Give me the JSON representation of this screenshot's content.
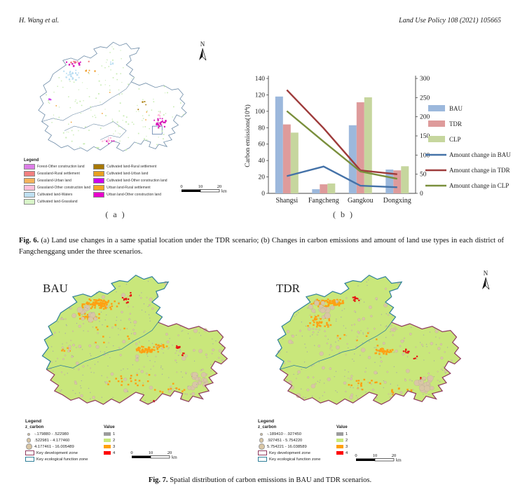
{
  "header": {
    "author": "H. Wang et al.",
    "journal": "Land Use Policy 108 (2021) 105665"
  },
  "fig6": {
    "north_label": "N",
    "label_a": "( a )",
    "label_b": "( b )",
    "caption_bold": "Fig. 6.",
    "caption_text": "(a) Land use changes in a same spatial location under the TDR scenario; (b) Changes in carbon emissions and amount of land use types in each district of Fangchenggang under the three scenarios.",
    "map_legend": {
      "title": "Legend",
      "items": [
        {
          "label": "Forest-Other construction land",
          "color": "#DD7EE8"
        },
        {
          "label": "Grassland-Rural settlement",
          "color": "#F28080"
        },
        {
          "label": "Grassland-Urban land",
          "color": "#F5B35C"
        },
        {
          "label": "Grassland-Other construction land",
          "color": "#FFC0DC"
        },
        {
          "label": "Cultivated land-Waters",
          "color": "#BFE0F2"
        },
        {
          "label": "Cultivated land-Grassland",
          "color": "#D9F5C9"
        },
        {
          "label": "Cultivated land-Rural settlement",
          "color": "#A87800"
        },
        {
          "label": "Cultivated land-Urban land",
          "color": "#E8A020"
        },
        {
          "label": "Cultivated land-Other construction land",
          "color": "#CC00EE"
        },
        {
          "label": "Urban land-Rural settlement",
          "color": "#F5A623"
        },
        {
          "label": "Urban land-Other construction land",
          "color": "#E800CC"
        }
      ]
    },
    "scalebar": {
      "ticks": [
        "0",
        "10",
        "20"
      ],
      "unit": "km"
    }
  },
  "chart_data": {
    "type": "bar+line",
    "categories": [
      "Shangsi",
      "Fangcheng",
      "Gangkou",
      "Dongxing"
    ],
    "bar_series": [
      {
        "name": "BAU",
        "values": [
          118,
          5,
          83,
          29
        ],
        "color": "#9CB8DC"
      },
      {
        "name": "TDR",
        "values": [
          84,
          11,
          111,
          28
        ],
        "color": "#DE9B9B"
      },
      {
        "name": "CLP",
        "values": [
          74,
          12,
          117,
          33
        ],
        "color": "#C6D69E"
      }
    ],
    "line_series": [
      {
        "name": "Amount change in BAU",
        "values": [
          45,
          70,
          20,
          16
        ],
        "color": "#4472A8"
      },
      {
        "name": "Amount change  in TDR",
        "values": [
          270,
          170,
          60,
          50
        ],
        "color": "#9E3B3B"
      },
      {
        "name": "Amount change in CLP",
        "values": [
          215,
          135,
          57,
          38
        ],
        "color": "#7A8F3C"
      }
    ],
    "ylabel": "Carbon emissions(10⁴t)",
    "xlabel": "",
    "y_left": {
      "min": 0,
      "max": 140,
      "step": 20
    },
    "y_right": {
      "min": 0,
      "max": 300,
      "step": 50
    },
    "grid": false,
    "legend_position": "right"
  },
  "fig7": {
    "north_label": "N",
    "caption_bold": "Fig. 7.",
    "caption_text": "Spatial distribution of carbon emissions in BAU and TDR scenarios.",
    "legend_title": "Legend",
    "field_label": "z_carbon",
    "value_header": "Value",
    "value_classes": [
      {
        "label": "1",
        "color": "#9C9C9C"
      },
      {
        "label": "2",
        "color": "#C8E87C"
      },
      {
        "label": "3",
        "color": "#FFA00A"
      },
      {
        "label": "4",
        "color": "#FE0000"
      }
    ],
    "zones": [
      {
        "label": "Key development zone",
        "color": "#8E3A5E"
      },
      {
        "label": "Key ecological function zone",
        "color": "#2F7F99"
      }
    ],
    "maps": [
      {
        "title": "BAU",
        "classes": [
          "-.179880 - .522980",
          ".522981 - 4.177460",
          "4.177461 - 16.005489"
        ]
      },
      {
        "title": "TDR",
        "classes": [
          "-.189410 - .927450",
          ".927451 - 5.754220",
          "5.754221 - 16.038589"
        ]
      }
    ],
    "scalebar": {
      "ticks": [
        "0",
        "10",
        "20"
      ],
      "unit": "km"
    },
    "map_colors": {
      "fill": "#C9E77B",
      "orange": "#FFA012",
      "red": "#E61212",
      "dots": "#D9C6A5",
      "gray": "#A8A8A8"
    }
  }
}
